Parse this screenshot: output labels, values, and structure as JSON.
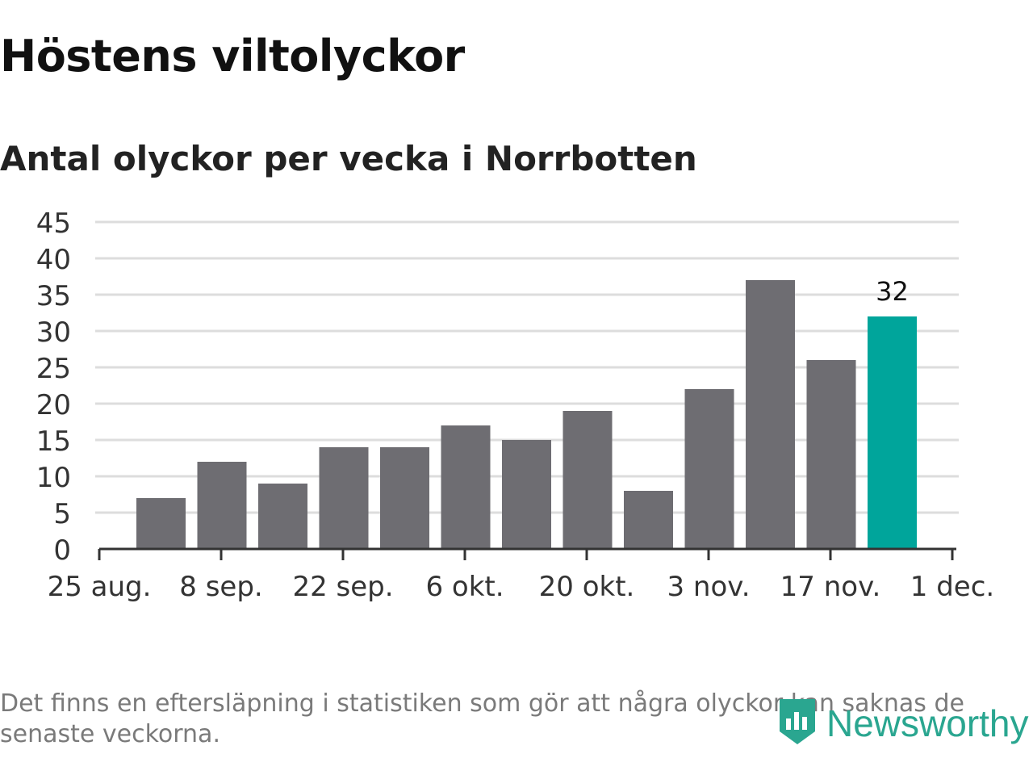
{
  "title": "Höstens viltolyckor",
  "subtitle": "Antal olyckor per vecka i Norrbotten",
  "footnote": "Det finns en eftersläpning i statistiken som gör att några olyckor kan saknas de senaste veckorna.",
  "brand": {
    "name": "Newsworthy",
    "icon": "newsworthy-logo-icon",
    "color": "#2aa690"
  },
  "colors": {
    "bar": "#6e6d72",
    "highlight": "#00a59b",
    "grid": "#dddddd",
    "axis": "#333333"
  },
  "chart_data": {
    "type": "bar",
    "title": "Höstens viltolyckor",
    "subtitle": "Antal olyckor per vecka i Norrbotten",
    "xlabel": "",
    "ylabel": "",
    "ylim": [
      0,
      45
    ],
    "yticks": [
      "0",
      "5",
      "10",
      "15",
      "20",
      "25",
      "30",
      "35",
      "40",
      "45"
    ],
    "xticks": [
      "25 aug.",
      "8 sep.",
      "22 sep.",
      "6 okt.",
      "20 okt.",
      "3 nov.",
      "17 nov.",
      "1 dec."
    ],
    "grid": true,
    "values": [
      7,
      12,
      9,
      14,
      14,
      17,
      15,
      19,
      8,
      22,
      37,
      26,
      32
    ],
    "highlight_index": 12,
    "data_labels": [
      {
        "index": 12,
        "text": "32"
      }
    ]
  }
}
